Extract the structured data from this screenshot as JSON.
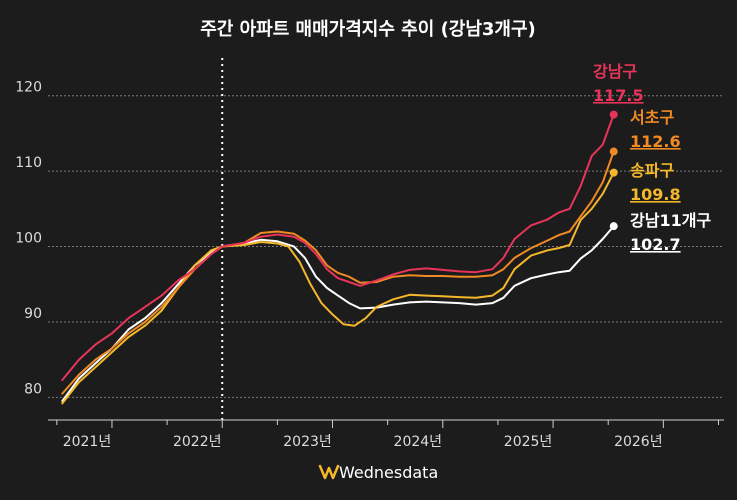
{
  "chart_data": {
    "type": "line",
    "title": "주간 아파트 매매가격지수 추이 (강남3개구)",
    "xlabel": "",
    "ylabel": "",
    "ylim": [
      77,
      125
    ],
    "xlim": [
      2020.42,
      2026.55
    ],
    "yticks": [
      "80",
      "90",
      "100",
      "110",
      "120"
    ],
    "ytick_values": [
      80,
      90,
      100,
      110,
      120
    ],
    "xticks": [
      "2021년",
      "2022년",
      "2023년",
      "2024년",
      "2025년",
      "2026년"
    ],
    "xtick_values": [
      2021.0,
      2022.0,
      2023.0,
      2024.0,
      2025.0,
      2026.0
    ],
    "reference_line": {
      "x": 2022.0,
      "style": "dotted"
    },
    "series": [
      {
        "name": "강남11개구",
        "label": "강남11개구",
        "end_label": "102.7",
        "color": "#ffffff",
        "x": [
          2020.55,
          2020.7,
          2020.85,
          2021.0,
          2021.15,
          2021.3,
          2021.45,
          2021.6,
          2021.75,
          2021.9,
          2022.0,
          2022.2,
          2022.35,
          2022.5,
          2022.65,
          2022.75,
          2022.85,
          2022.95,
          2023.05,
          2023.15,
          2023.25,
          2023.4,
          2023.55,
          2023.7,
          2023.85,
          2024.0,
          2024.15,
          2024.3,
          2024.45,
          2024.55,
          2024.65,
          2024.8,
          2024.95,
          2025.05,
          2025.15,
          2025.25,
          2025.35,
          2025.45,
          2025.55
        ],
        "values": [
          79.5,
          82.5,
          84.5,
          86.5,
          89.0,
          90.5,
          92.5,
          95.0,
          97.5,
          99.2,
          100.0,
          100.4,
          100.9,
          100.7,
          100.0,
          98.5,
          96.0,
          94.5,
          93.5,
          92.5,
          91.8,
          91.9,
          92.3,
          92.6,
          92.7,
          92.6,
          92.5,
          92.3,
          92.5,
          93.2,
          94.8,
          95.8,
          96.3,
          96.6,
          96.8,
          98.4,
          99.5,
          101.0,
          102.7
        ]
      },
      {
        "name": "송파구",
        "label": "송파구",
        "end_label": "109.8",
        "color": "#f4b82a",
        "x": [
          2020.55,
          2020.7,
          2020.85,
          2021.0,
          2021.15,
          2021.3,
          2021.45,
          2021.6,
          2021.75,
          2021.9,
          2022.0,
          2022.2,
          2022.35,
          2022.5,
          2022.6,
          2022.7,
          2022.8,
          2022.9,
          2023.0,
          2023.1,
          2023.2,
          2023.3,
          2023.4,
          2023.55,
          2023.7,
          2023.85,
          2024.0,
          2024.15,
          2024.3,
          2024.45,
          2024.55,
          2024.65,
          2024.8,
          2024.95,
          2025.05,
          2025.15,
          2025.25,
          2025.35,
          2025.45,
          2025.55
        ],
        "values": [
          79.2,
          82.0,
          84.0,
          86.0,
          88.0,
          89.5,
          91.5,
          94.5,
          97.5,
          99.5,
          100.0,
          100.2,
          100.6,
          100.4,
          100.0,
          98.0,
          95.0,
          92.5,
          91.0,
          89.7,
          89.5,
          90.5,
          92.0,
          93.0,
          93.6,
          93.5,
          93.4,
          93.3,
          93.2,
          93.5,
          94.5,
          97.0,
          98.8,
          99.5,
          99.8,
          100.2,
          103.5,
          105.0,
          107.0,
          109.8
        ]
      },
      {
        "name": "서초구",
        "label": "서초구",
        "end_label": "112.6",
        "color": "#f08a24",
        "x": [
          2020.55,
          2020.7,
          2020.85,
          2021.0,
          2021.15,
          2021.3,
          2021.45,
          2021.6,
          2021.75,
          2021.9,
          2022.0,
          2022.2,
          2022.35,
          2022.5,
          2022.65,
          2022.75,
          2022.85,
          2022.95,
          2023.05,
          2023.15,
          2023.25,
          2023.4,
          2023.55,
          2023.7,
          2023.85,
          2024.0,
          2024.15,
          2024.3,
          2024.45,
          2024.55,
          2024.65,
          2024.8,
          2024.95,
          2025.05,
          2025.15,
          2025.25,
          2025.35,
          2025.45,
          2025.55
        ],
        "values": [
          80.5,
          83.0,
          85.0,
          86.5,
          88.5,
          90.0,
          92.0,
          94.5,
          97.0,
          99.0,
          100.0,
          100.5,
          101.8,
          102.0,
          101.7,
          100.8,
          99.5,
          97.5,
          96.5,
          96.0,
          95.2,
          95.3,
          96.0,
          96.2,
          96.1,
          96.1,
          96.0,
          96.0,
          96.2,
          97.0,
          98.5,
          99.8,
          100.8,
          101.5,
          102.0,
          104.0,
          106.0,
          108.5,
          112.6
        ]
      },
      {
        "name": "강남구",
        "label": "강남구",
        "end_label": "117.5",
        "color": "#e8345a",
        "x": [
          2020.55,
          2020.7,
          2020.85,
          2021.0,
          2021.15,
          2021.3,
          2021.45,
          2021.6,
          2021.75,
          2021.9,
          2022.0,
          2022.2,
          2022.35,
          2022.5,
          2022.65,
          2022.75,
          2022.85,
          2022.95,
          2023.05,
          2023.15,
          2023.25,
          2023.4,
          2023.55,
          2023.7,
          2023.85,
          2024.0,
          2024.15,
          2024.3,
          2024.45,
          2024.55,
          2024.65,
          2024.8,
          2024.95,
          2025.05,
          2025.15,
          2025.25,
          2025.35,
          2025.45,
          2025.55
        ],
        "values": [
          82.3,
          85.0,
          87.0,
          88.5,
          90.5,
          92.0,
          93.5,
          95.5,
          97.0,
          99.0,
          100.0,
          100.5,
          101.3,
          101.6,
          101.3,
          100.5,
          99.0,
          97.0,
          95.8,
          95.3,
          94.8,
          95.5,
          96.3,
          96.9,
          97.1,
          96.9,
          96.7,
          96.6,
          97.0,
          98.5,
          101.0,
          102.8,
          103.6,
          104.5,
          105.0,
          108.0,
          112.0,
          113.5,
          117.5
        ]
      }
    ]
  },
  "brand": "Wednesdata"
}
